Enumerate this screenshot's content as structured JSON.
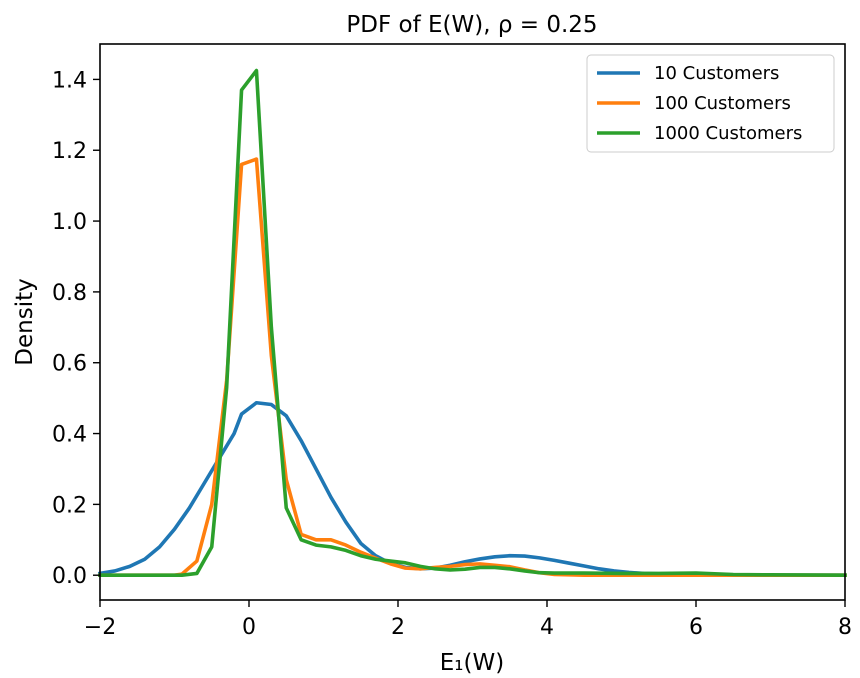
{
  "chart_data": {
    "type": "line",
    "title": "PDF of E(W), ρ = 0.25",
    "xlabel": "E₁(W)",
    "ylabel": "Density",
    "xlim": [
      -2,
      8
    ],
    "ylim": [
      -0.07,
      1.5
    ],
    "xticks": [
      -2,
      0,
      2,
      4,
      6,
      8
    ],
    "xtick_labels": [
      "−2",
      "0",
      "2",
      "4",
      "6",
      "8"
    ],
    "yticks": [
      0.0,
      0.2,
      0.4,
      0.6,
      0.8,
      1.0,
      1.2,
      1.4
    ],
    "ytick_labels": [
      "0.0",
      "0.2",
      "0.4",
      "0.6",
      "0.8",
      "1.0",
      "1.2",
      "1.4"
    ],
    "grid": false,
    "legend_position": "top-right",
    "series": [
      {
        "name": "10 Customers",
        "color": "#1f77b4",
        "x": [
          -2.0,
          -1.8,
          -1.6,
          -1.4,
          -1.2,
          -1.0,
          -0.8,
          -0.6,
          -0.4,
          -0.2,
          -0.1,
          0.1,
          0.3,
          0.5,
          0.7,
          0.9,
          1.1,
          1.3,
          1.5,
          1.7,
          1.9,
          2.1,
          2.3,
          2.5,
          2.7,
          2.9,
          3.1,
          3.3,
          3.5,
          3.7,
          3.9,
          4.1,
          4.3,
          4.5,
          4.7,
          4.9,
          5.1,
          5.3,
          5.5,
          5.7,
          5.9,
          6.1,
          6.3,
          6.5,
          7.0,
          7.5,
          8.0
        ],
        "y": [
          0.005,
          0.012,
          0.025,
          0.045,
          0.08,
          0.13,
          0.19,
          0.26,
          0.33,
          0.4,
          0.455,
          0.487,
          0.482,
          0.45,
          0.38,
          0.3,
          0.22,
          0.15,
          0.09,
          0.055,
          0.033,
          0.022,
          0.018,
          0.02,
          0.028,
          0.038,
          0.046,
          0.052,
          0.055,
          0.054,
          0.049,
          0.042,
          0.034,
          0.026,
          0.018,
          0.012,
          0.008,
          0.005,
          0.004,
          0.003,
          0.002,
          0.001,
          0.001,
          0.0,
          0.0,
          0.0,
          0.0
        ]
      },
      {
        "name": "100 Customers",
        "color": "#ff7f0e",
        "x": [
          -2.0,
          -1.5,
          -1.0,
          -0.9,
          -0.7,
          -0.5,
          -0.3,
          -0.1,
          0.1,
          0.3,
          0.5,
          0.7,
          0.9,
          1.1,
          1.3,
          1.5,
          1.7,
          1.9,
          2.1,
          2.3,
          2.5,
          2.7,
          2.9,
          3.1,
          3.3,
          3.5,
          3.7,
          3.9,
          4.1,
          4.5,
          5.0,
          6.0,
          7.0,
          8.0
        ],
        "y": [
          0.0,
          0.0,
          0.0,
          0.003,
          0.04,
          0.2,
          0.55,
          1.16,
          1.175,
          0.62,
          0.27,
          0.115,
          0.1,
          0.1,
          0.085,
          0.065,
          0.048,
          0.032,
          0.02,
          0.018,
          0.022,
          0.025,
          0.03,
          0.032,
          0.028,
          0.024,
          0.015,
          0.007,
          0.002,
          0.0,
          0.0,
          0.0,
          0.0,
          0.0
        ]
      },
      {
        "name": "1000 Customers",
        "color": "#2ca02c",
        "x": [
          -2.0,
          -1.5,
          -1.0,
          -0.9,
          -0.7,
          -0.5,
          -0.3,
          -0.1,
          0.1,
          0.3,
          0.5,
          0.7,
          0.9,
          1.1,
          1.3,
          1.5,
          1.7,
          1.9,
          2.1,
          2.3,
          2.5,
          2.7,
          2.9,
          3.1,
          3.3,
          3.5,
          3.7,
          3.9,
          4.1,
          4.5,
          5.0,
          5.5,
          6.0,
          6.5,
          7.0,
          8.0
        ],
        "y": [
          0.0,
          0.0,
          0.0,
          0.0,
          0.005,
          0.08,
          0.53,
          1.37,
          1.425,
          0.7,
          0.19,
          0.1,
          0.085,
          0.08,
          0.07,
          0.055,
          0.045,
          0.04,
          0.035,
          0.025,
          0.018,
          0.015,
          0.017,
          0.022,
          0.022,
          0.018,
          0.012,
          0.007,
          0.006,
          0.006,
          0.005,
          0.005,
          0.006,
          0.002,
          0.001,
          0.0
        ]
      }
    ]
  }
}
